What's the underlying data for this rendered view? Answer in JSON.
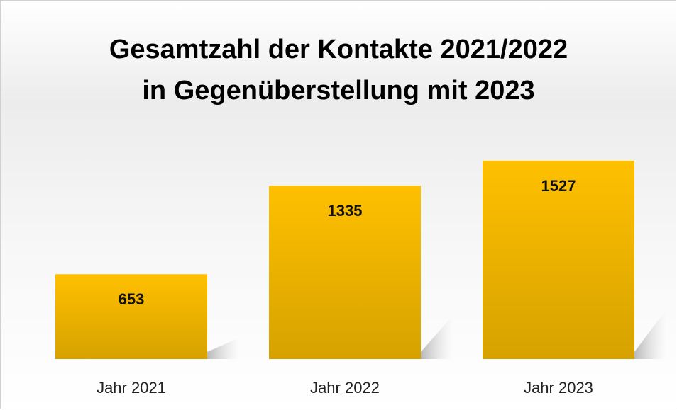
{
  "chart_data": {
    "type": "bar",
    "title": [
      "Gesamtzahl der Kontakte 2021/2022",
      "in Gegenüberstellung mit 2023"
    ],
    "categories": [
      "Jahr 2021",
      "Jahr 2022",
      "Jahr 2023"
    ],
    "values": [
      653,
      1335,
      1527
    ],
    "color": "#ffc000"
  }
}
